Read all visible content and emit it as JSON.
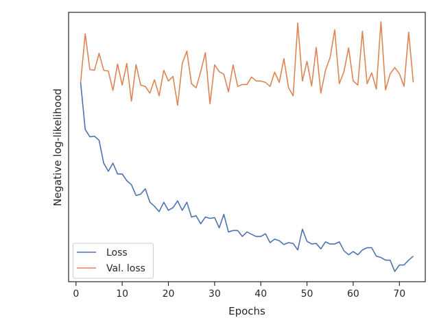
{
  "chart_data": {
    "type": "line",
    "xlabel": "Epochs",
    "ylabel": "Negative log-likelihood",
    "xlim": [
      -1.6,
      75.6
    ],
    "ylim": [
      0.0,
      1.0
    ],
    "y_tick_labels_shown": false,
    "x_ticks": [
      0,
      10,
      20,
      30,
      40,
      50,
      60,
      70
    ],
    "grid": false,
    "legend_position": "lower-left",
    "x": [
      1,
      2,
      3,
      4,
      5,
      6,
      7,
      8,
      9,
      10,
      11,
      12,
      13,
      14,
      15,
      16,
      17,
      18,
      19,
      20,
      21,
      22,
      23,
      24,
      25,
      26,
      27,
      28,
      29,
      30,
      31,
      32,
      33,
      34,
      35,
      36,
      37,
      38,
      39,
      40,
      41,
      42,
      43,
      44,
      45,
      46,
      47,
      48,
      49,
      50,
      51,
      52,
      53,
      54,
      55,
      56,
      57,
      58,
      59,
      60,
      61,
      62,
      63,
      64,
      65,
      66,
      67,
      68,
      69,
      70,
      71,
      72,
      73
    ],
    "series": [
      {
        "name": "Loss",
        "color": "#4c72b0",
        "values": [
          0.74,
          0.565,
          0.538,
          0.54,
          0.525,
          0.44,
          0.41,
          0.44,
          0.4,
          0.4,
          0.375,
          0.36,
          0.32,
          0.325,
          0.345,
          0.295,
          0.28,
          0.26,
          0.295,
          0.265,
          0.275,
          0.3,
          0.265,
          0.295,
          0.24,
          0.245,
          0.215,
          0.24,
          0.235,
          0.238,
          0.2,
          0.25,
          0.185,
          0.19,
          0.19,
          0.168,
          0.185,
          0.176,
          0.168,
          0.168,
          0.178,
          0.145,
          0.158,
          0.152,
          0.138,
          0.145,
          0.142,
          0.118,
          0.195,
          0.15,
          0.14,
          0.142,
          0.122,
          0.148,
          0.14,
          0.14,
          0.148,
          0.115,
          0.1,
          0.112,
          0.1,
          0.118,
          0.126,
          0.126,
          0.095,
          0.09,
          0.08,
          0.08,
          0.038,
          0.062,
          0.062,
          0.08,
          0.095
        ]
      },
      {
        "name": "Val. loss",
        "color": "#dd8452",
        "values": [
          0.74,
          0.92,
          0.788,
          0.785,
          0.848,
          0.785,
          0.782,
          0.71,
          0.808,
          0.73,
          0.81,
          0.67,
          0.806,
          0.73,
          0.725,
          0.7,
          0.75,
          0.69,
          0.785,
          0.745,
          0.762,
          0.655,
          0.81,
          0.856,
          0.735,
          0.72,
          0.78,
          0.85,
          0.66,
          0.805,
          0.78,
          0.77,
          0.705,
          0.805,
          0.725,
          0.732,
          0.732,
          0.76,
          0.745,
          0.745,
          0.74,
          0.725,
          0.778,
          0.74,
          0.828,
          0.72,
          0.69,
          0.96,
          0.745,
          0.818,
          0.727,
          0.87,
          0.7,
          0.785,
          0.832,
          0.935,
          0.735,
          0.78,
          0.868,
          0.745,
          0.73,
          0.93,
          0.735,
          0.776,
          0.715,
          0.965,
          0.712,
          0.772,
          0.795,
          0.772,
          0.725,
          0.926,
          0.74
        ]
      }
    ]
  }
}
